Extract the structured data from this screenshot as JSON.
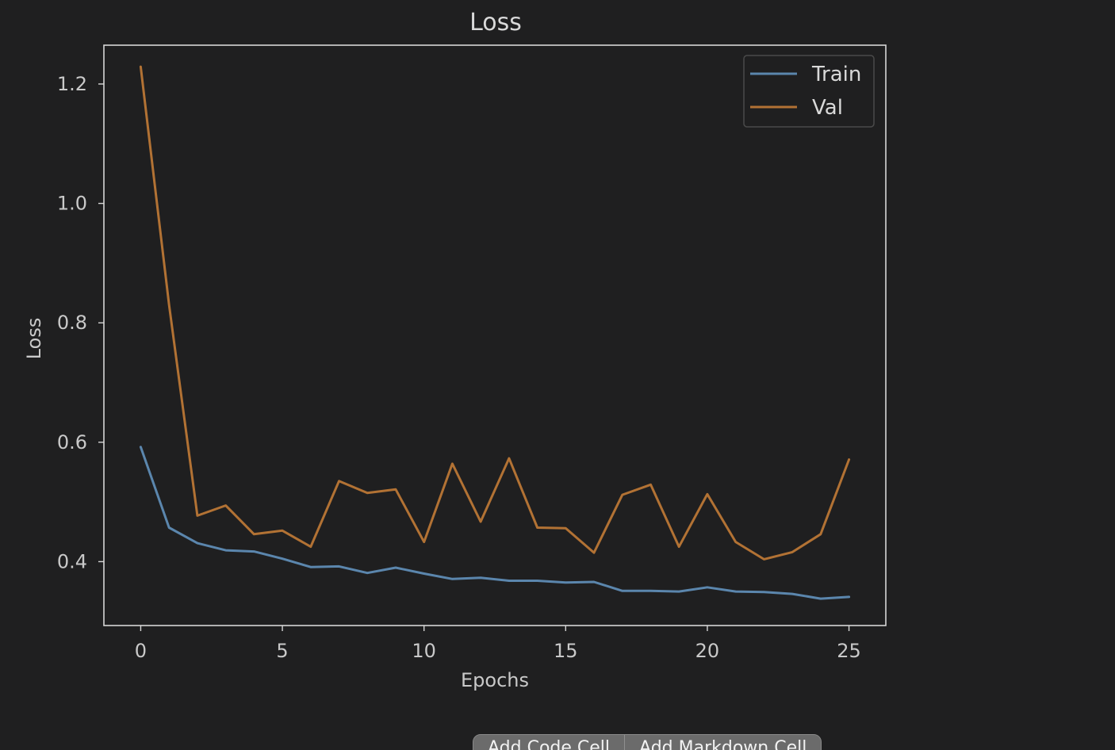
{
  "chart_data": {
    "type": "line",
    "title": "Loss",
    "xlabel": "Epochs",
    "ylabel": "Loss",
    "xlim": [
      -1.3,
      26.3
    ],
    "ylim": [
      0.293,
      1.265
    ],
    "xticks": [
      0,
      5,
      10,
      15,
      20,
      25
    ],
    "xtick_labels": [
      "0",
      "5",
      "10",
      "15",
      "20",
      "25"
    ],
    "yticks": [
      0.4,
      0.6,
      0.8,
      1.0,
      1.2
    ],
    "ytick_labels": [
      "0.4",
      "0.6",
      "0.8",
      "1.0",
      "1.2"
    ],
    "grid": false,
    "legend_position": "top-right",
    "x": [
      0,
      1,
      2,
      3,
      4,
      5,
      6,
      7,
      8,
      9,
      10,
      11,
      12,
      13,
      14,
      15,
      16,
      17,
      18,
      19,
      20,
      21,
      22,
      23,
      24,
      25
    ],
    "series": [
      {
        "name": "Train",
        "color": "#5b86ad",
        "values": [
          0.592,
          0.457,
          0.431,
          0.419,
          0.417,
          0.405,
          0.391,
          0.392,
          0.381,
          0.39,
          0.38,
          0.371,
          0.373,
          0.368,
          0.368,
          0.365,
          0.366,
          0.351,
          0.351,
          0.35,
          0.357,
          0.35,
          0.349,
          0.346,
          0.338,
          0.341
        ]
      },
      {
        "name": "Val",
        "color": "#b27234",
        "values": [
          1.229,
          0.83,
          0.477,
          0.494,
          0.446,
          0.452,
          0.425,
          0.535,
          0.515,
          0.521,
          0.433,
          0.564,
          0.467,
          0.573,
          0.457,
          0.456,
          0.415,
          0.512,
          0.529,
          0.425,
          0.513,
          0.433,
          0.404,
          0.416,
          0.446,
          0.571
        ]
      }
    ],
    "colors": {
      "axes_edge": "#d6d6d6",
      "tick_text": "#c9c9c9",
      "background": "#1f1f20"
    }
  },
  "toolbar": {
    "add_code_label": "Add Code Cell",
    "add_markdown_label": "Add Markdown Cell"
  }
}
